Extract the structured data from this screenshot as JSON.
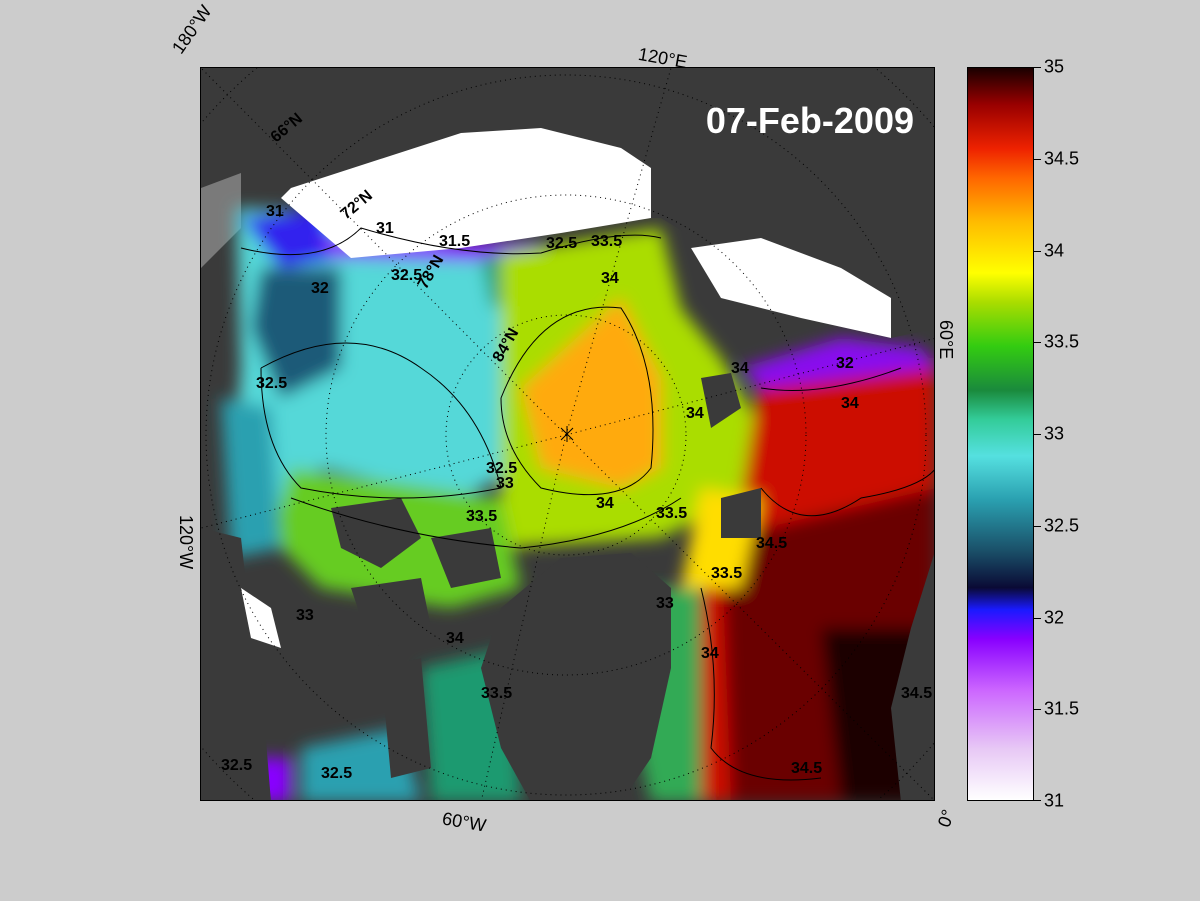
{
  "map": {
    "date": "07-Feb-2009",
    "meridian_labels": {
      "w180": "180°W",
      "e120": "120°E",
      "e60": "60°E",
      "w120": "120°W",
      "w60": "60°W",
      "deg0": "0°"
    },
    "parallel_labels": [
      "66°N",
      "72°N",
      "78°N",
      "84°N"
    ],
    "contour_labels": [
      "31",
      "31.5",
      "32",
      "32.5",
      "33",
      "33.5",
      "34",
      "34.5"
    ],
    "colors": {
      "land": "#3a3a3a",
      "ice": "#ffffff",
      "low_salinity": "#8800ff",
      "mid_salinity": "#55e0e0",
      "high_salinity": "#ff6600",
      "max_salinity": "#1a0000"
    }
  },
  "colorbar": {
    "min": 31,
    "max": 35,
    "ticks": [
      "31",
      "31.5",
      "32",
      "32.5",
      "33",
      "33.5",
      "34",
      "34.5",
      "35"
    ]
  }
}
